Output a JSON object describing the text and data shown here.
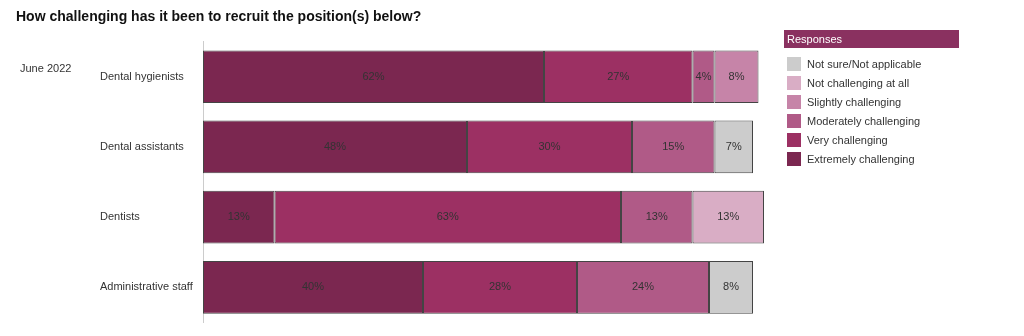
{
  "chart_data": {
    "type": "bar",
    "title": "How challenging has it been to recruit the position(s) below?",
    "orientation": "horizontal",
    "stacked": true,
    "categories": [
      "Dental hygienists",
      "Dental assistants",
      "Dentists",
      "Administrative staff"
    ],
    "series": [
      {
        "name": "Extremely challenging",
        "color": "#7b2750",
        "values": [
          62,
          48,
          13,
          40
        ],
        "value_labels": [
          "62%",
          "48%",
          "13%",
          "40%"
        ]
      },
      {
        "name": "Very challenging",
        "color": "#9c3063",
        "values": [
          27,
          30,
          63,
          28
        ],
        "value_labels": [
          "27%",
          "30%",
          "63%",
          "28%"
        ]
      },
      {
        "name": "Moderately challenging",
        "color": "#b05a87",
        "values": [
          4,
          15,
          13,
          24
        ],
        "value_labels": [
          "4%",
          "15%",
          "13%",
          "24%"
        ]
      },
      {
        "name": "Slightly challenging",
        "color": "#c684a8",
        "values": [
          8,
          null,
          null,
          null
        ],
        "value_labels": [
          "8%",
          null,
          null,
          null
        ]
      },
      {
        "name": "Not challenging at all",
        "color": "#d9adc5",
        "values": [
          null,
          null,
          13,
          null
        ],
        "value_labels": [
          null,
          null,
          "13%",
          null
        ]
      },
      {
        "name": "Not sure/Not applicable",
        "color": "#cccccc",
        "values": [
          null,
          7,
          null,
          8
        ],
        "value_labels": [
          null,
          "7%",
          null,
          "8%"
        ]
      }
    ],
    "tick_labels": "y",
    "grid": false,
    "legend": "right",
    "legend_title": "Responses",
    "annotations": [
      "June 2022"
    ]
  }
}
